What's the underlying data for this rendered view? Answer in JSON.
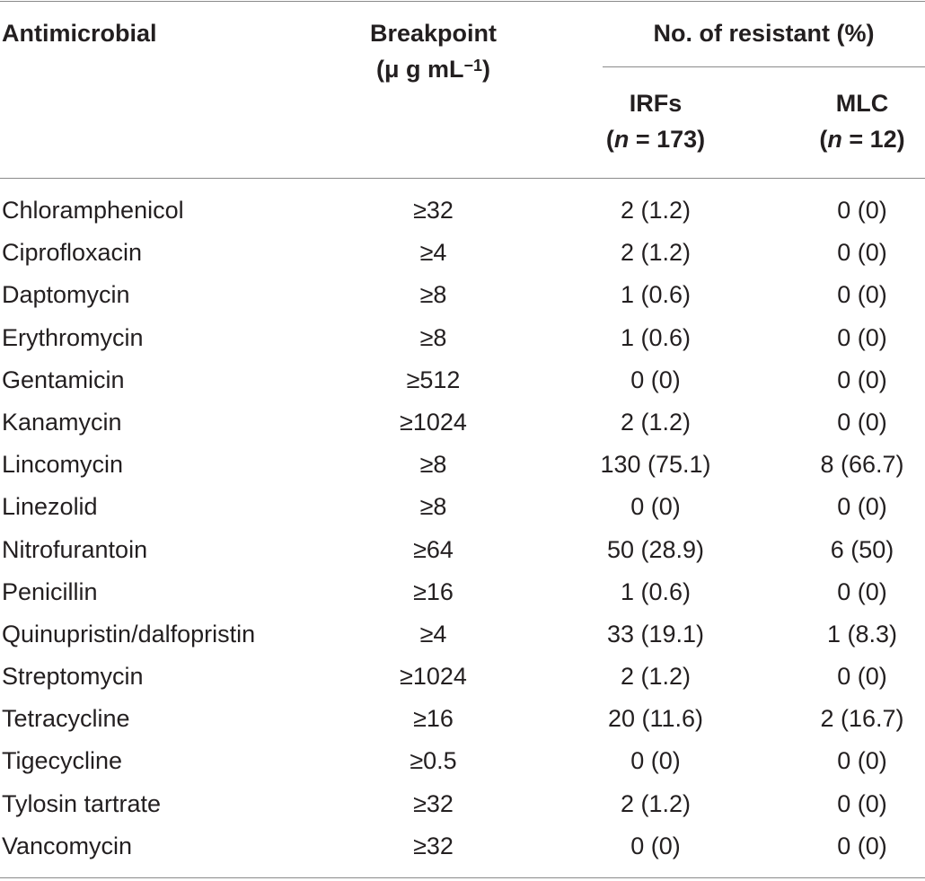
{
  "headers": {
    "antimicrobial": "Antimicrobial",
    "breakpoint_line1": "Breakpoint",
    "breakpoint_line2": "(μ g mL",
    "breakpoint_sup": "−1",
    "breakpoint_close": ")",
    "resistant": "No. of resistant (%)",
    "irfs": "IRFs",
    "irfs_n_var": "n",
    "irfs_n": " = 173)",
    "mlc": "MLC",
    "mlc_n_var": "n",
    "mlc_n": " = 12)"
  },
  "rows": [
    {
      "name": "Chloramphenicol",
      "breakpoint": "≥32",
      "irfs": "2 (1.2)",
      "mlc": "0 (0)"
    },
    {
      "name": "Ciprofloxacin",
      "breakpoint": "≥4",
      "irfs": "2 (1.2)",
      "mlc": "0 (0)"
    },
    {
      "name": "Daptomycin",
      "breakpoint": "≥8",
      "irfs": "1 (0.6)",
      "mlc": "0 (0)"
    },
    {
      "name": "Erythromycin",
      "breakpoint": "≥8",
      "irfs": "1 (0.6)",
      "mlc": "0 (0)"
    },
    {
      "name": "Gentamicin",
      "breakpoint": "≥512",
      "irfs": "0 (0)",
      "mlc": "0 (0)"
    },
    {
      "name": "Kanamycin",
      "breakpoint": "≥1024",
      "irfs": "2 (1.2)",
      "mlc": "0 (0)"
    },
    {
      "name": "Lincomycin",
      "breakpoint": "≥8",
      "irfs": "130 (75.1)",
      "mlc": "8 (66.7)"
    },
    {
      "name": "Linezolid",
      "breakpoint": "≥8",
      "irfs": "0 (0)",
      "mlc": "0 (0)"
    },
    {
      "name": "Nitrofurantoin",
      "breakpoint": "≥64",
      "irfs": "50 (28.9)",
      "mlc": "6 (50)"
    },
    {
      "name": "Penicillin",
      "breakpoint": "≥16",
      "irfs": "1 (0.6)",
      "mlc": "0 (0)"
    },
    {
      "name": "Quinupristin/dalfopristin",
      "breakpoint": "≥4",
      "irfs": "33 (19.1)",
      "mlc": "1 (8.3)"
    },
    {
      "name": "Streptomycin",
      "breakpoint": "≥1024",
      "irfs": "2 (1.2)",
      "mlc": "0 (0)"
    },
    {
      "name": "Tetracycline",
      "breakpoint": "≥16",
      "irfs": "20 (11.6)",
      "mlc": "2 (16.7)"
    },
    {
      "name": "Tigecycline",
      "breakpoint": "≥0.5",
      "irfs": "0 (0)",
      "mlc": "0 (0)"
    },
    {
      "name": "Tylosin tartrate",
      "breakpoint": "≥32",
      "irfs": "2 (1.2)",
      "mlc": "0 (0)"
    },
    {
      "name": "Vancomycin",
      "breakpoint": "≥32",
      "irfs": "0 (0)",
      "mlc": "0 (0)"
    }
  ]
}
